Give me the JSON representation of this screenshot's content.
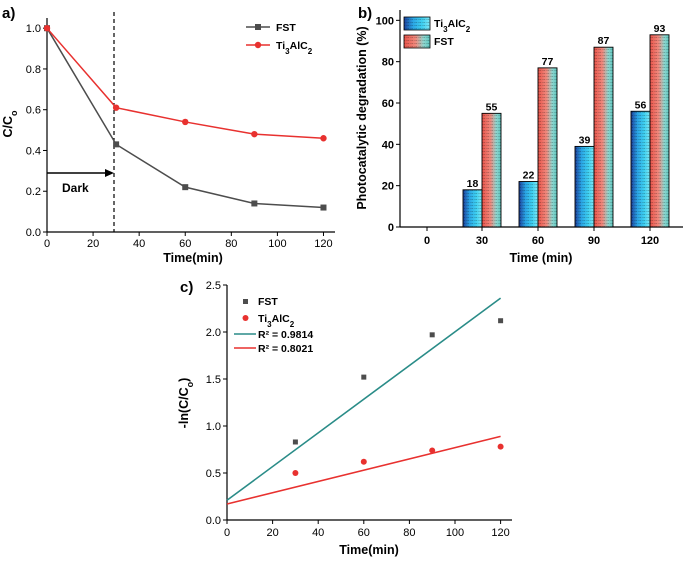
{
  "chart_data": [
    {
      "panel": "a)",
      "type": "line",
      "xlabel": "Time(min)",
      "ylabel": "C/Co",
      "ylabel_main": "C/C",
      "ylabel_sub": "o",
      "xlim": [
        0,
        125
      ],
      "ylim": [
        0.0,
        1.05
      ],
      "xticks": [
        "0",
        "20",
        "40",
        "60",
        "80",
        "100",
        "120"
      ],
      "yticks": [
        "0.0",
        "0.2",
        "0.4",
        "0.6",
        "0.8",
        "1.0"
      ],
      "x": [
        0,
        30,
        60,
        90,
        120
      ],
      "series": [
        {
          "name": "FST",
          "color": "#4d4d4d",
          "marker": "square",
          "values": [
            1.0,
            0.43,
            0.22,
            0.14,
            0.12
          ]
        },
        {
          "name": "Ti3AlC2",
          "label_main": "Ti",
          "label_sub1": "3",
          "label_mid": "AlC",
          "label_sub2": "2",
          "color": "#e8312f",
          "marker": "circle",
          "values": [
            1.0,
            0.61,
            0.54,
            0.48,
            0.46
          ]
        }
      ],
      "annotations": {
        "dark_label": "Dark",
        "dark_arrow_y": 0.3,
        "dark_line_x": 30
      }
    },
    {
      "panel": "b)",
      "type": "bar",
      "xlabel": "Time (min)",
      "ylabel": "Photocatalytic degradation (%)",
      "categories": [
        "0",
        "30",
        "60",
        "90",
        "120"
      ],
      "ylim": [
        0,
        105
      ],
      "yticks": [
        "0",
        "20",
        "40",
        "60",
        "80",
        "100"
      ],
      "series": [
        {
          "name": "Ti3AlC2",
          "label_main": "Ti",
          "label_sub1": "3",
          "label_mid": "AlC",
          "label_sub2": "2",
          "color": "#1fa3e0",
          "values": [
            0,
            18,
            22,
            39,
            56
          ],
          "value_labels": [
            "",
            "18",
            "22",
            "39",
            "56"
          ]
        },
        {
          "name": "FST",
          "color": "#e9695c",
          "values": [
            0,
            55,
            77,
            87,
            93
          ],
          "value_labels": [
            "",
            "55",
            "77",
            "87",
            "93"
          ]
        }
      ]
    },
    {
      "panel": "c)",
      "type": "scatter",
      "xlabel": "Time(min)",
      "ylabel": "-ln(C/Co)",
      "ylabel_main": "-ln(C/C",
      "ylabel_sub": "o",
      "ylabel_end": ")",
      "xlim": [
        0,
        125
      ],
      "ylim": [
        0.0,
        2.5
      ],
      "xticks": [
        "0",
        "20",
        "40",
        "60",
        "80",
        "100",
        "120"
      ],
      "yticks": [
        "0.0",
        "0.5",
        "1.0",
        "1.5",
        "2.0",
        "2.5"
      ],
      "x": [
        30,
        60,
        90,
        120
      ],
      "series": [
        {
          "name": "FST",
          "color": "#4d4d4d",
          "marker": "square",
          "values": [
            0.83,
            1.52,
            1.97,
            2.12
          ]
        },
        {
          "name": "Ti3AlC2",
          "label_main": "Ti",
          "label_sub1": "3",
          "label_mid": "AlC",
          "label_sub2": "2",
          "color": "#e8312f",
          "marker": "circle",
          "values": [
            0.5,
            0.62,
            0.74,
            0.78
          ]
        }
      ],
      "fits": [
        {
          "label": "R² = 0.9814",
          "color": "#2a8c88",
          "x": [
            0,
            120
          ],
          "y": [
            0.21,
            2.36
          ]
        },
        {
          "label": "R² = 0.8021",
          "color": "#e8312f",
          "x": [
            0,
            120
          ],
          "y": [
            0.17,
            0.89
          ]
        }
      ]
    }
  ]
}
